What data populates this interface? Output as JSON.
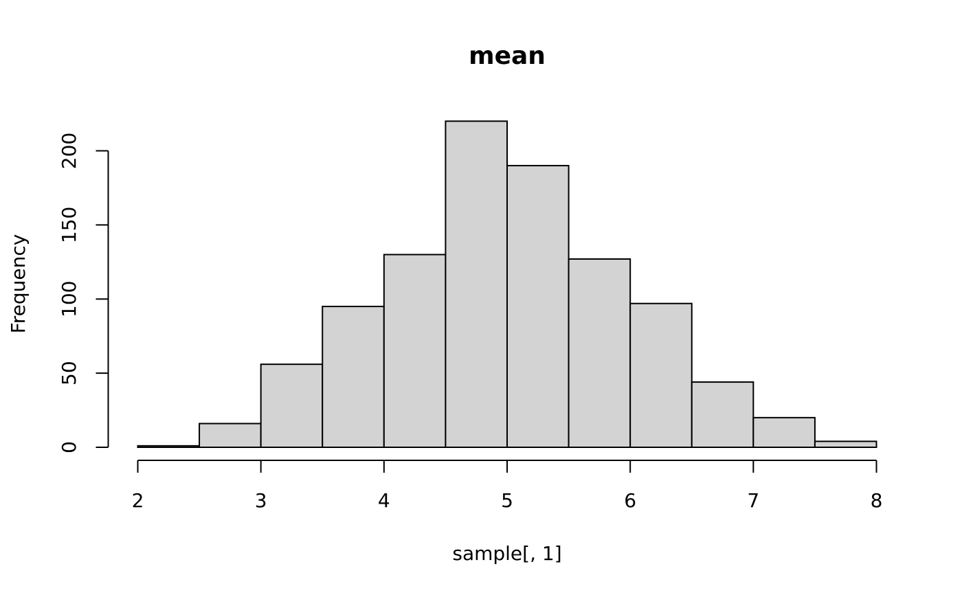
{
  "chart_data": {
    "type": "bar",
    "title": "mean",
    "xlabel": "sample[, 1]",
    "ylabel": "Frequency",
    "bins": [
      {
        "from": 2.0,
        "to": 2.5,
        "count": 1
      },
      {
        "from": 2.5,
        "to": 3.0,
        "count": 16
      },
      {
        "from": 3.0,
        "to": 3.5,
        "count": 56
      },
      {
        "from": 3.5,
        "to": 4.0,
        "count": 95
      },
      {
        "from": 4.0,
        "to": 4.5,
        "count": 130
      },
      {
        "from": 4.5,
        "to": 5.0,
        "count": 220
      },
      {
        "from": 5.0,
        "to": 5.5,
        "count": 190
      },
      {
        "from": 5.5,
        "to": 6.0,
        "count": 127
      },
      {
        "from": 6.0,
        "to": 6.5,
        "count": 97
      },
      {
        "from": 6.5,
        "to": 7.0,
        "count": 44
      },
      {
        "from": 7.0,
        "to": 7.5,
        "count": 20
      },
      {
        "from": 7.5,
        "to": 8.0,
        "count": 4
      }
    ],
    "xlim": [
      2,
      8
    ],
    "ylim": [
      0,
      200
    ],
    "x_ticks": [
      "2",
      "3",
      "4",
      "5",
      "6",
      "7",
      "8"
    ],
    "y_ticks": [
      "0",
      "50",
      "100",
      "150",
      "200"
    ],
    "grid": false,
    "bar_fill": "#d3d3d3",
    "bar_stroke": "#000000"
  }
}
